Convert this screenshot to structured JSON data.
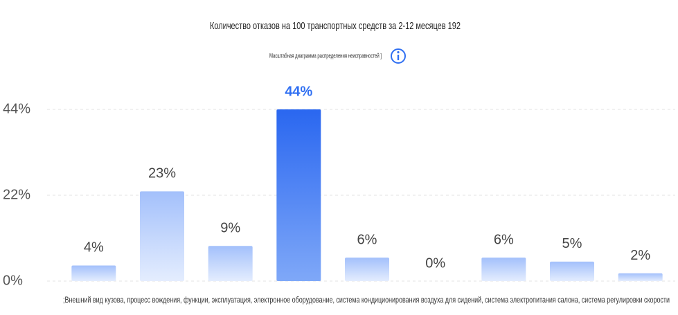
{
  "chart_data": {
    "type": "bar",
    "title": "Количество отказов на 100 транспортных средств за 2-12 месяцев 192",
    "subtitle": "Масштабная диаграмма распределения неисправностей ]",
    "x_label": ";Внешний вид кузова, процесс вождения, функции, эксплуатация, электронное оборудование, система кондиционирования воздуха для сидений, система электропитания салона, система регулировки скорости",
    "categories": [
      null,
      null,
      null,
      null,
      null,
      null,
      null,
      null,
      null
    ],
    "values": [
      4,
      23,
      9,
      44,
      6,
      0,
      6,
      5,
      2
    ],
    "value_labels": [
      "4%",
      "23%",
      "9%",
      "44%",
      "6%",
      "0%",
      "6%",
      "5%",
      "2%"
    ],
    "colors": [
      "#a9c5fb",
      "#a9c5fb",
      "#a9c5fb",
      "#2f6ff2",
      "#a9c5fb",
      "#a9c5fb",
      "#a9c5fb",
      "#a9c5fb",
      "#a9c5fb"
    ],
    "label_colors": [
      "#444444",
      "#444444",
      "#444444",
      "#2f6ff2",
      "#444444",
      "#444444",
      "#444444",
      "#444444",
      "#444444"
    ],
    "ylim": [
      0,
      44
    ],
    "yticks": [
      {
        "value": 0,
        "label": "0%"
      },
      {
        "value": 22,
        "label": "22%"
      },
      {
        "value": 44,
        "label": "44%"
      }
    ],
    "grid": true
  }
}
